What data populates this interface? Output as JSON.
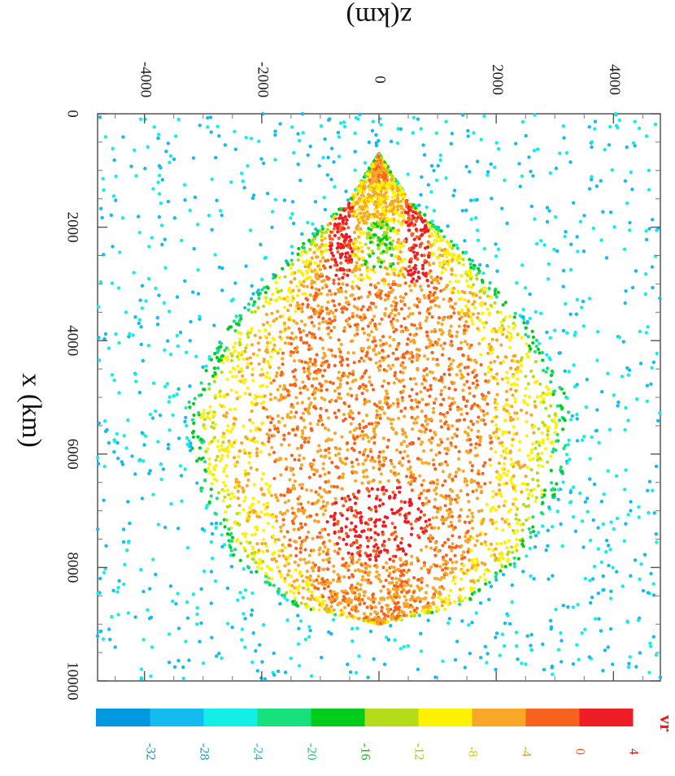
{
  "chart_data": {
    "type": "scatter",
    "x_axis_title": "z(km)",
    "y_axis_title": "x (km)",
    "variable_label": "vr",
    "x_range": [
      -4800,
      4800
    ],
    "y_range": [
      0,
      10000
    ],
    "x_ticks": [
      "-4000",
      "-2000",
      "0",
      "2000",
      "4000"
    ],
    "x_tick_values": [
      -4000,
      -2000,
      0,
      2000,
      4000
    ],
    "y_ticks": [
      "0",
      "2000",
      "4000",
      "6000",
      "8000",
      "10000"
    ],
    "y_tick_values": [
      0,
      2000,
      4000,
      6000,
      8000,
      10000
    ],
    "colorbar": {
      "labels": [
        "4",
        "0",
        "-4",
        "-8",
        "-12",
        "-16",
        "-20",
        "-24",
        "-28",
        "-32"
      ],
      "colors": [
        "#ee1c24",
        "#f7621e",
        "#f8a726",
        "#fff200",
        "#b5dc19",
        "#00cc1b",
        "#17e07c",
        "#12efe6",
        "#13bbef",
        "#0099e0"
      ],
      "label_colors": [
        "#e81d1d",
        "#f25a12",
        "#e0a800",
        "#d8cc00",
        "#9fcc00",
        "#16b816",
        "#19c977",
        "#16c9c9",
        "#129ec9",
        "#1b86c7"
      ]
    },
    "regions": {
      "cone_apex": [
        0,
        700
      ],
      "cone_half_width_at": [
        [
          700,
          0
        ],
        [
          1500,
          500
        ],
        [
          2500,
          1500
        ],
        [
          3800,
          2600
        ],
        [
          5200,
          3300
        ],
        [
          6500,
          3100
        ],
        [
          7800,
          2500
        ],
        [
          8700,
          1400
        ],
        [
          9000,
          0
        ]
      ],
      "inner_jet_red_streaks_z": [
        -650,
        650
      ],
      "inner_jet_x": [
        1300,
        3000
      ],
      "green_core": [
        0,
        2300
      ],
      "red_blob_center": [
        0,
        7200
      ]
    }
  }
}
